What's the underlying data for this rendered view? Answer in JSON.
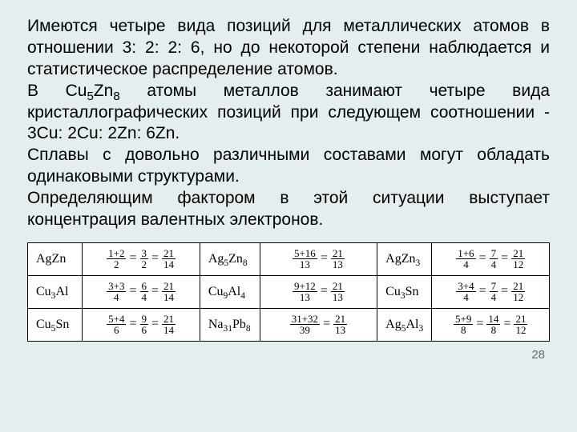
{
  "text": {
    "p1a": "Имеются четыре вида позиций для металлических атомов в отношении 3: 2: 2: 6, но до некоторой степени наблюдается и статистическое распределение атомов.",
    "p2a": "В Cu",
    "p2b": "Zn",
    "p2c": " атомы металлов занимают четыре вида кристаллографических позиций при следующем соотношении - 3Cu: 2Cu: 2Zn: 6Zn.",
    "p3": "Сплавы с довольно различными составами могут обладать одинаковыми структурами.",
    "p4": "Определяющим фактором в этой ситуации выступает концентрация валентных электронов.",
    "sub5": "5",
    "sub8": "8"
  },
  "table": {
    "rows": [
      [
        {
          "f": "AgZn",
          "eq": [
            [
              "1+2",
              "2"
            ],
            [
              "3",
              "2"
            ],
            [
              "21",
              "14"
            ]
          ]
        },
        {
          "f": "Ag₅Zn₈",
          "eq": [
            [
              "5+16",
              "13"
            ],
            [
              "21",
              "13"
            ]
          ]
        },
        {
          "f": "AgZn₃",
          "eq": [
            [
              "1+6",
              "4"
            ],
            [
              "7",
              "4"
            ],
            [
              "21",
              "12"
            ]
          ]
        }
      ],
      [
        {
          "f": "Cu₃Al",
          "eq": [
            [
              "3+3",
              "4"
            ],
            [
              "6",
              "4"
            ],
            [
              "21",
              "14"
            ]
          ]
        },
        {
          "f": "Cu₉Al₄",
          "eq": [
            [
              "9+12",
              "13"
            ],
            [
              "21",
              "13"
            ]
          ]
        },
        {
          "f": "Cu₃Sn",
          "eq": [
            [
              "3+4",
              "4"
            ],
            [
              "7",
              "4"
            ],
            [
              "21",
              "12"
            ]
          ]
        }
      ],
      [
        {
          "f": "Cu₅Sn",
          "eq": [
            [
              "5+4",
              "6"
            ],
            [
              "9",
              "6"
            ],
            [
              "21",
              "14"
            ]
          ]
        },
        {
          "f": "Na₃₁Pb₈",
          "eq": [
            [
              "31+32",
              "39"
            ],
            [
              "21",
              "13"
            ]
          ]
        },
        {
          "f": "Ag₅Al₃",
          "eq": [
            [
              "5+9",
              "8"
            ],
            [
              "14",
              "8"
            ],
            [
              "21",
              "12"
            ]
          ]
        }
      ]
    ]
  },
  "pagenum": "28"
}
